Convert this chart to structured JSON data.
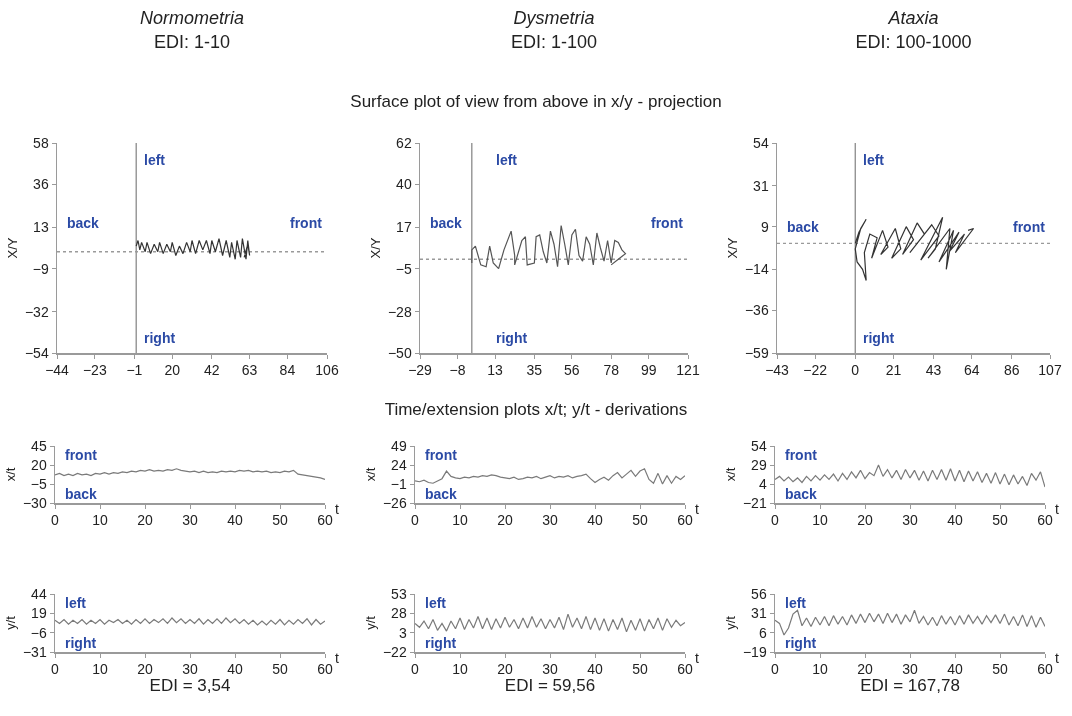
{
  "chart_data": [
    {
      "type": "line",
      "title": "Normometria",
      "subtitle": "EDI: 1-10",
      "ylabel": "X/Y",
      "xlim": [
        -44,
        106
      ],
      "xticks": [
        -44,
        -23,
        -1,
        20,
        42,
        63,
        84,
        106
      ],
      "ylim": [
        -54,
        58
      ],
      "yticks": [
        -54,
        -32,
        -9,
        13,
        36,
        58
      ],
      "ref_lines": [
        {
          "axis": "x",
          "value": 0,
          "color": "#8a8a8a",
          "line_style": "solid"
        },
        {
          "axis": "y",
          "value": 0,
          "color": "#9a9a9a",
          "line_style": "dotted"
        }
      ],
      "annotations": [
        "left",
        "right",
        "back",
        "front"
      ],
      "series": [
        {
          "color": "#333333",
          "x": [
            0,
            1,
            2,
            3,
            5,
            6,
            8,
            10,
            12,
            13,
            15,
            17,
            19,
            20,
            22,
            24,
            26,
            28,
            30,
            31,
            33,
            35,
            37,
            39,
            41,
            42,
            44,
            46,
            48,
            50,
            52,
            53,
            55,
            56,
            58,
            59,
            61,
            62,
            63,
            62,
            60
          ],
          "values": [
            3,
            6,
            1,
            5,
            0,
            5,
            -1,
            4,
            0,
            5,
            -1,
            4,
            0,
            5,
            -2,
            3,
            -1,
            5,
            0,
            6,
            -1,
            6,
            1,
            6,
            -1,
            6,
            0,
            7,
            -2,
            6,
            -3,
            5,
            -4,
            6,
            -3,
            7,
            -4,
            6,
            -2,
            4,
            -3
          ]
        }
      ]
    },
    {
      "type": "line",
      "title": "Dysmetria",
      "subtitle": "EDI: 1-100",
      "ylabel": "X/Y",
      "xlim": [
        -29,
        121
      ],
      "xticks": [
        -29,
        -8,
        13,
        35,
        56,
        78,
        99,
        121
      ],
      "ylim": [
        -50,
        62
      ],
      "yticks": [
        -50,
        -28,
        -5,
        17,
        40,
        62
      ],
      "ref_lines": [
        {
          "axis": "x",
          "value": 0,
          "color": "#8a8a8a",
          "line_style": "solid"
        },
        {
          "axis": "y",
          "value": 0,
          "color": "#9a9a9a",
          "line_style": "dotted"
        }
      ],
      "annotations": [
        "left",
        "right",
        "back",
        "front",
        "Surface plot of view from above in x/y - projection"
      ],
      "series": [
        {
          "color": "#555555",
          "x": [
            0,
            0,
            2,
            5,
            8,
            10,
            12,
            15,
            18,
            22,
            24,
            24,
            28,
            30,
            31,
            35,
            36,
            38,
            40,
            42,
            44,
            46,
            48,
            50,
            52,
            54,
            56,
            58,
            60,
            62,
            64,
            66,
            68,
            70,
            72,
            74,
            76,
            78,
            80,
            82,
            84,
            86,
            82,
            78
          ],
          "values": [
            -2,
            5,
            7,
            -3,
            -4,
            7,
            -2,
            -5,
            5,
            15,
            2,
            -3,
            10,
            12,
            -3,
            -2,
            12,
            13,
            4,
            -2,
            15,
            8,
            -4,
            18,
            8,
            -3,
            13,
            16,
            2,
            -1,
            12,
            8,
            -3,
            14,
            6,
            -1,
            10,
            -2,
            10,
            9,
            5,
            3,
            0,
            -3
          ]
        }
      ]
    },
    {
      "type": "line",
      "title": "Ataxia",
      "subtitle": "EDI: 100-1000",
      "ylabel": "X/Y",
      "xlim": [
        -43,
        107
      ],
      "xticks": [
        -43,
        -22,
        0,
        21,
        43,
        64,
        86,
        107
      ],
      "ylim": [
        -59,
        54
      ],
      "yticks": [
        -59,
        -36,
        -14,
        9,
        31,
        54
      ],
      "ref_lines": [
        {
          "axis": "x",
          "value": 0,
          "color": "#8a8a8a",
          "line_style": "solid"
        },
        {
          "axis": "y",
          "value": 0,
          "color": "#9a9a9a",
          "line_style": "dotted"
        }
      ],
      "annotations": [
        "left",
        "right",
        "back",
        "front"
      ],
      "series": [
        {
          "color": "#333333",
          "x": [
            0,
            2,
            6,
            3,
            0,
            1,
            4,
            6,
            5,
            8,
            12,
            9,
            15,
            18,
            14,
            22,
            25,
            20,
            28,
            32,
            26,
            34,
            38,
            30,
            42,
            46,
            36,
            48,
            44,
            40,
            52,
            50,
            54,
            46,
            57,
            52,
            60,
            55,
            65,
            62
          ],
          "values": [
            0,
            6,
            13,
            8,
            -3,
            -10,
            -14,
            -20,
            -5,
            5,
            3,
            -8,
            7,
            -2,
            -6,
            8,
            -3,
            -8,
            9,
            2,
            -6,
            11,
            5,
            -5,
            10,
            4,
            -9,
            14,
            -3,
            -8,
            8,
            -14,
            7,
            -10,
            6,
            -4,
            5,
            -5,
            8,
            7
          ]
        }
      ]
    },
    {
      "type": "line",
      "ylabel": "x/t",
      "xlabel": "t",
      "xlim": [
        0,
        60
      ],
      "xticks": [
        0,
        10,
        20,
        30,
        40,
        50,
        60
      ],
      "ylim": [
        -30,
        45
      ],
      "yticks": [
        -30,
        -5,
        20,
        45
      ],
      "annotations": [
        "front",
        "back"
      ],
      "color": "#7a7a7a",
      "x": [
        0,
        1,
        2,
        3,
        4,
        5,
        6,
        7,
        8,
        9,
        10,
        11,
        12,
        13,
        14,
        15,
        16,
        17,
        18,
        19,
        20,
        21,
        22,
        23,
        24,
        25,
        26,
        27,
        28,
        29,
        30,
        31,
        32,
        33,
        34,
        35,
        36,
        37,
        38,
        39,
        40,
        41,
        42,
        43,
        44,
        45,
        46,
        47,
        48,
        49,
        50,
        51,
        52,
        53,
        54,
        55,
        56,
        57,
        58,
        59,
        60
      ],
      "values": [
        7,
        9,
        6,
        8,
        6,
        9,
        7,
        8,
        6,
        9,
        8,
        10,
        8,
        10,
        9,
        11,
        10,
        12,
        11,
        13,
        12,
        14,
        12,
        13,
        12,
        14,
        13,
        15,
        13,
        12,
        11,
        12,
        10,
        12,
        10,
        11,
        10,
        12,
        11,
        12,
        11,
        13,
        12,
        13,
        11,
        12,
        11,
        12,
        10,
        11,
        10,
        12,
        11,
        13,
        8,
        7,
        6,
        5,
        4,
        3,
        1
      ]
    },
    {
      "type": "line",
      "ylabel": "x/t",
      "xlabel": "t",
      "xlim": [
        0,
        60
      ],
      "xticks": [
        0,
        10,
        20,
        30,
        40,
        50,
        60
      ],
      "ylim": [
        -26,
        49
      ],
      "yticks": [
        -26,
        -1,
        24,
        49
      ],
      "annotations": [
        "front",
        "back",
        "Time/extension plots x/t; y/t - derivations"
      ],
      "color": "#7a7a7a",
      "x": [
        0,
        1,
        2,
        3,
        4,
        5,
        6,
        7,
        8,
        9,
        10,
        11,
        12,
        13,
        14,
        15,
        16,
        17,
        18,
        19,
        20,
        21,
        22,
        23,
        24,
        25,
        26,
        27,
        28,
        29,
        30,
        31,
        32,
        33,
        34,
        35,
        36,
        37,
        38,
        39,
        40,
        41,
        42,
        43,
        44,
        45,
        46,
        47,
        48,
        49,
        50,
        51,
        52,
        53,
        54,
        55,
        56,
        57,
        58,
        59,
        60
      ],
      "values": [
        3,
        2,
        4,
        1,
        0,
        3,
        6,
        16,
        9,
        7,
        6,
        8,
        7,
        9,
        8,
        10,
        9,
        11,
        10,
        8,
        7,
        6,
        8,
        5,
        6,
        8,
        7,
        9,
        6,
        8,
        10,
        7,
        9,
        8,
        10,
        7,
        9,
        10,
        12,
        6,
        1,
        5,
        8,
        4,
        10,
        14,
        7,
        12,
        17,
        9,
        16,
        19,
        5,
        0,
        13,
        -1,
        10,
        0,
        9,
        5,
        10
      ]
    },
    {
      "type": "line",
      "ylabel": "x/t",
      "xlabel": "t",
      "xlim": [
        0,
        60
      ],
      "xticks": [
        0,
        10,
        20,
        30,
        40,
        50,
        60
      ],
      "ylim": [
        -21,
        54
      ],
      "yticks": [
        -21,
        4,
        29,
        54
      ],
      "annotations": [
        "front",
        "back"
      ],
      "color": "#7a7a7a",
      "x": [
        0,
        1,
        2,
        3,
        4,
        5,
        6,
        7,
        8,
        9,
        10,
        11,
        12,
        13,
        14,
        15,
        16,
        17,
        18,
        19,
        20,
        21,
        22,
        23,
        24,
        25,
        26,
        27,
        28,
        29,
        30,
        31,
        32,
        33,
        34,
        35,
        36,
        37,
        38,
        39,
        40,
        41,
        42,
        43,
        44,
        45,
        46,
        47,
        48,
        49,
        50,
        51,
        52,
        53,
        54,
        55,
        56,
        57,
        58,
        59,
        60
      ],
      "values": [
        10,
        14,
        8,
        13,
        7,
        12,
        6,
        14,
        8,
        15,
        9,
        16,
        10,
        17,
        8,
        18,
        10,
        20,
        12,
        22,
        11,
        19,
        15,
        29,
        14,
        23,
        12,
        22,
        10,
        23,
        12,
        22,
        9,
        21,
        8,
        22,
        10,
        23,
        9,
        24,
        8,
        22,
        7,
        21,
        8,
        20,
        6,
        18,
        5,
        19,
        4,
        17,
        3,
        16,
        4,
        14,
        2,
        18,
        9,
        20,
        0
      ]
    },
    {
      "type": "line",
      "ylabel": "y/t",
      "xlabel": "t",
      "xlim": [
        0,
        60
      ],
      "xticks": [
        0,
        10,
        20,
        30,
        40,
        50,
        60
      ],
      "ylim": [
        -31,
        44
      ],
      "yticks": [
        -31,
        -6,
        19,
        44
      ],
      "annotations": [
        "left",
        "right",
        "EDI = 3,54"
      ],
      "color": "#7a7a7a",
      "x": [
        0,
        1,
        2,
        3,
        4,
        5,
        6,
        7,
        8,
        9,
        10,
        11,
        12,
        13,
        14,
        15,
        16,
        17,
        18,
        19,
        20,
        21,
        22,
        23,
        24,
        25,
        26,
        27,
        28,
        29,
        30,
        31,
        32,
        33,
        34,
        35,
        36,
        37,
        38,
        39,
        40,
        41,
        42,
        43,
        44,
        45,
        46,
        47,
        48,
        49,
        50,
        51,
        52,
        53,
        54,
        55,
        56,
        57,
        58,
        59,
        60
      ],
      "values": [
        10,
        6,
        11,
        5,
        10,
        6,
        11,
        5,
        10,
        6,
        11,
        5,
        10,
        7,
        11,
        6,
        10,
        5,
        11,
        6,
        12,
        6,
        11,
        7,
        12,
        6,
        13,
        7,
        12,
        6,
        11,
        6,
        12,
        5,
        11,
        6,
        12,
        6,
        13,
        7,
        12,
        6,
        11,
        5,
        10,
        4,
        9,
        4,
        10,
        5,
        11,
        4,
        10,
        5,
        11,
        6,
        12,
        4,
        11,
        5,
        9
      ]
    },
    {
      "type": "line",
      "ylabel": "y/t",
      "xlabel": "t",
      "xlim": [
        0,
        60
      ],
      "xticks": [
        0,
        10,
        20,
        30,
        40,
        50,
        60
      ],
      "ylim": [
        -22,
        53
      ],
      "yticks": [
        -22,
        3,
        28,
        53
      ],
      "annotations": [
        "left",
        "right",
        "EDI = 59,56"
      ],
      "color": "#7a7a7a",
      "x": [
        0,
        1,
        2,
        3,
        4,
        5,
        6,
        7,
        8,
        9,
        10,
        11,
        12,
        13,
        14,
        15,
        16,
        17,
        18,
        19,
        20,
        21,
        22,
        23,
        24,
        25,
        26,
        27,
        28,
        29,
        30,
        31,
        32,
        33,
        34,
        35,
        36,
        37,
        38,
        39,
        40,
        41,
        42,
        43,
        44,
        45,
        46,
        47,
        48,
        49,
        50,
        51,
        52,
        53,
        54,
        55,
        56,
        57,
        58,
        59,
        60
      ],
      "values": [
        15,
        10,
        18,
        8,
        20,
        6,
        15,
        5,
        18,
        8,
        22,
        7,
        20,
        9,
        24,
        8,
        22,
        7,
        21,
        9,
        23,
        10,
        20,
        8,
        22,
        9,
        24,
        10,
        21,
        8,
        20,
        9,
        23,
        7,
        27,
        10,
        22,
        8,
        24,
        7,
        22,
        6,
        21,
        5,
        20,
        7,
        22,
        4,
        19,
        6,
        21,
        5,
        20,
        8,
        22,
        6,
        21,
        10,
        19,
        12,
        16
      ]
    },
    {
      "type": "line",
      "ylabel": "y/t",
      "xlabel": "t",
      "xlim": [
        0,
        60
      ],
      "xticks": [
        0,
        10,
        20,
        30,
        40,
        50,
        60
      ],
      "ylim": [
        -19,
        56
      ],
      "yticks": [
        -19,
        6,
        31,
        56
      ],
      "annotations": [
        "left",
        "right",
        "EDI = 167,78"
      ],
      "color": "#7a7a7a",
      "x": [
        0,
        1,
        2,
        3,
        4,
        5,
        6,
        7,
        8,
        9,
        10,
        11,
        12,
        13,
        14,
        15,
        16,
        17,
        18,
        19,
        20,
        21,
        22,
        23,
        24,
        25,
        26,
        27,
        28,
        29,
        30,
        31,
        32,
        33,
        34,
        35,
        36,
        37,
        38,
        39,
        40,
        41,
        42,
        43,
        44,
        45,
        46,
        47,
        48,
        49,
        50,
        51,
        52,
        53,
        54,
        55,
        56,
        57,
        58,
        59,
        60
      ],
      "values": [
        22,
        18,
        3,
        12,
        30,
        35,
        15,
        25,
        14,
        26,
        16,
        27,
        15,
        28,
        17,
        27,
        16,
        29,
        18,
        30,
        19,
        31,
        20,
        30,
        18,
        31,
        19,
        30,
        17,
        29,
        20,
        35,
        18,
        27,
        16,
        26,
        15,
        28,
        17,
        27,
        16,
        28,
        17,
        29,
        18,
        27,
        17,
        28,
        19,
        29,
        18,
        30,
        16,
        27,
        15,
        29,
        14,
        28,
        13,
        26,
        14
      ]
    }
  ]
}
